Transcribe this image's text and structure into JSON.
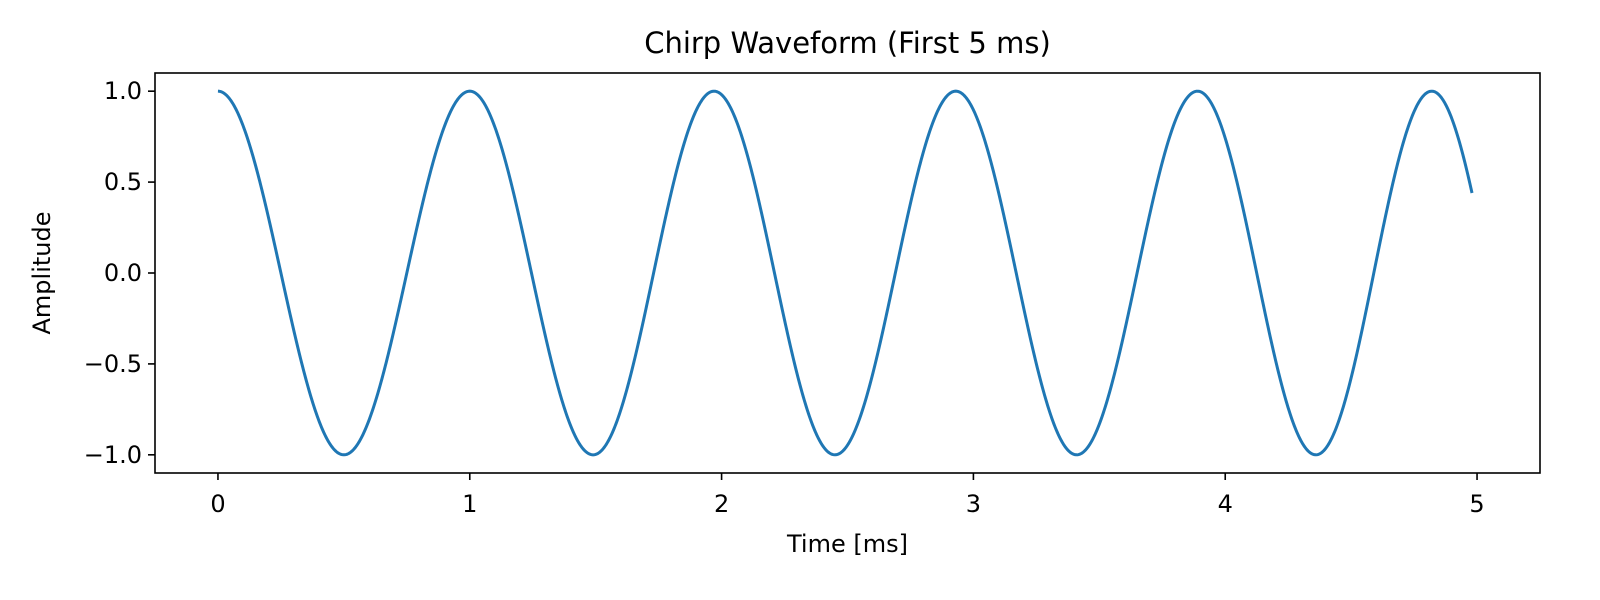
{
  "chart_data": {
    "type": "line",
    "title": "Chirp Waveform (First 5 ms)",
    "xlabel": "Time [ms]",
    "ylabel": "Amplitude",
    "xlim": [
      -0.25,
      5.25
    ],
    "ylim": [
      -1.1,
      1.1
    ],
    "xticks": [
      0,
      1,
      2,
      3,
      4,
      5
    ],
    "xtick_labels": [
      "0",
      "1",
      "2",
      "3",
      "4",
      "5"
    ],
    "yticks": [
      -1.0,
      -0.5,
      0.0,
      0.5,
      1.0
    ],
    "ytick_labels": [
      "−1.0",
      "−0.5",
      "0.0",
      "0.5",
      "1.0"
    ],
    "grid": false,
    "legend": "none",
    "series": [
      {
        "color": "#1f77b4",
        "x_start": 0.0,
        "x_end": 4.98,
        "peaks_x": [
          0.0,
          1.0,
          1.97,
          2.93,
          3.89,
          4.82
        ],
        "troughs_x": [
          0.5,
          1.49,
          2.45,
          3.41,
          4.36
        ],
        "end_value": 0.44
      }
    ]
  }
}
